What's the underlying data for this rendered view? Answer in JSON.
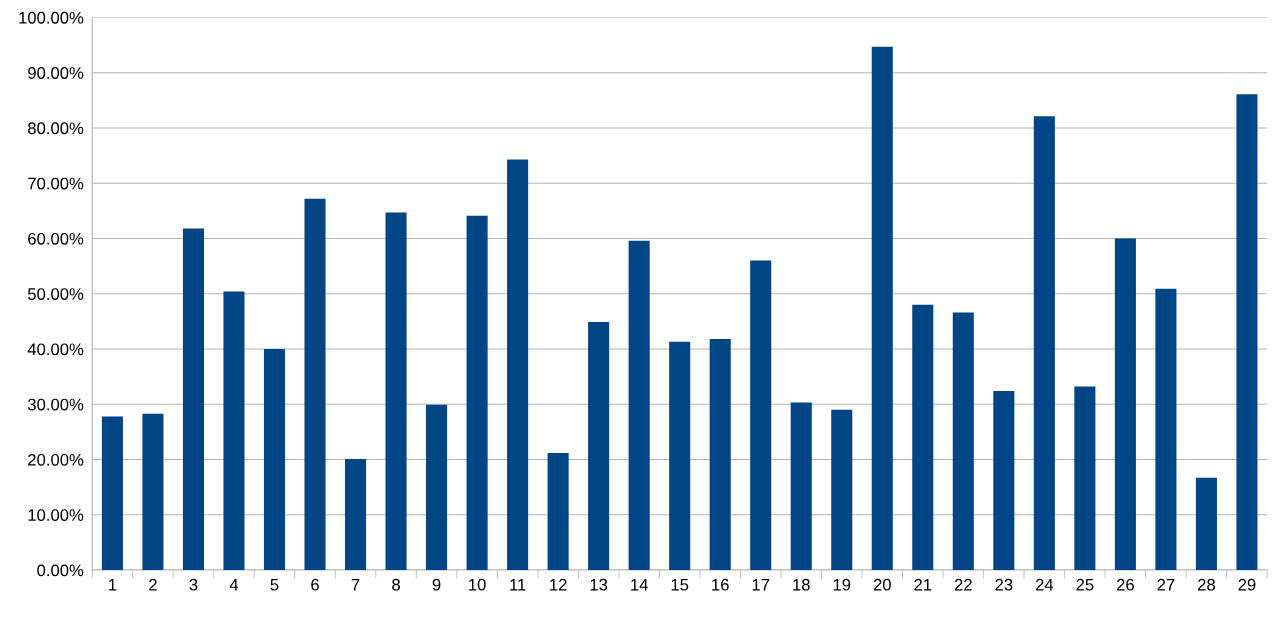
{
  "chart_data": {
    "type": "bar",
    "categories": [
      "1",
      "2",
      "3",
      "4",
      "5",
      "6",
      "7",
      "8",
      "9",
      "10",
      "11",
      "12",
      "13",
      "14",
      "15",
      "16",
      "17",
      "18",
      "19",
      "20",
      "21",
      "22",
      "23",
      "24",
      "25",
      "26",
      "27",
      "28",
      "29"
    ],
    "values": [
      27.8,
      28.3,
      61.8,
      50.4,
      40.0,
      67.2,
      20.1,
      64.7,
      29.9,
      64.1,
      74.3,
      21.2,
      44.9,
      59.6,
      41.3,
      41.8,
      56.0,
      30.3,
      29.0,
      94.7,
      48.0,
      46.6,
      32.4,
      82.1,
      33.2,
      60.0,
      50.9,
      16.7,
      86.1
    ],
    "color": "#004586",
    "ylim": [
      0,
      100
    ],
    "yticks": [
      {
        "value": 0,
        "label": "0.00%"
      },
      {
        "value": 10,
        "label": "10.00%"
      },
      {
        "value": 20,
        "label": "20.00%"
      },
      {
        "value": 30,
        "label": "30.00%"
      },
      {
        "value": 40,
        "label": "40.00%"
      },
      {
        "value": 50,
        "label": "50.00%"
      },
      {
        "value": 60,
        "label": "60.00%"
      },
      {
        "value": 70,
        "label": "70.00%"
      },
      {
        "value": 80,
        "label": "80.00%"
      },
      {
        "value": 90,
        "label": "90.00%"
      },
      {
        "value": 100,
        "label": "100.00%"
      }
    ],
    "grid": "y",
    "legend": false
  }
}
